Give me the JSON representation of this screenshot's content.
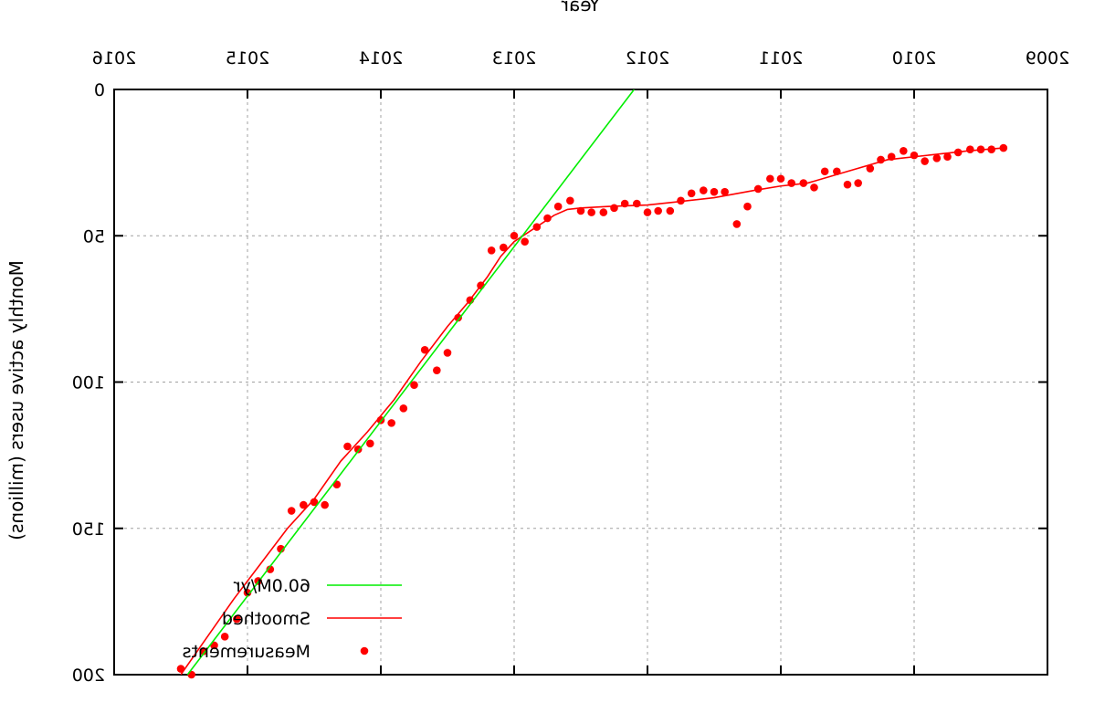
{
  "chart_data": {
    "type": "scatter",
    "xlabel": "Year",
    "ylabel": "Monthly active users (millions)",
    "xlim": [
      2009,
      2016
    ],
    "ylim": [
      0,
      200
    ],
    "x_ticks": [
      "2009",
      "2010",
      "2011",
      "2012",
      "2013",
      "2014",
      "2015",
      "2016"
    ],
    "y_ticks": [
      "0",
      "50",
      "100",
      "150",
      "200"
    ],
    "grid": true,
    "legend_position": "bottom-left",
    "series": [
      {
        "name": "Measurements",
        "kind": "points",
        "color": "#ff0000",
        "x": [
          2009.33,
          2009.42,
          2009.5,
          2009.58,
          2009.67,
          2009.75,
          2009.83,
          2009.92,
          2010.0,
          2010.08,
          2010.17,
          2010.25,
          2010.33,
          2010.42,
          2010.5,
          2010.58,
          2010.67,
          2010.75,
          2010.83,
          2010.92,
          2011.0,
          2011.08,
          2011.17,
          2011.25,
          2011.33,
          2011.42,
          2011.5,
          2011.58,
          2011.67,
          2011.75,
          2011.83,
          2011.92,
          2012.0,
          2012.08,
          2012.17,
          2012.25,
          2012.33,
          2012.42,
          2012.5,
          2012.58,
          2012.67,
          2012.75,
          2012.83,
          2012.92,
          2013.0,
          2013.08,
          2013.17,
          2013.25,
          2013.33,
          2013.42,
          2013.5,
          2013.58,
          2013.67,
          2013.75,
          2013.83,
          2013.92,
          2014.0,
          2014.08,
          2014.17,
          2014.25,
          2014.33,
          2014.42,
          2014.5,
          2014.58,
          2014.67,
          2014.75,
          2014.83,
          2014.92,
          2015.0,
          2015.08,
          2015.17,
          2015.25,
          2015.33,
          2015.42,
          2015.5
        ],
        "y": [
          20,
          20.5,
          20.5,
          20.5,
          21.5,
          23,
          23.5,
          24.5,
          22.5,
          21,
          23,
          24,
          27,
          32,
          32.5,
          28,
          28,
          33.5,
          32,
          32,
          30.5,
          30.5,
          34,
          40,
          46,
          35,
          35,
          34.5,
          35.5,
          38,
          41.5,
          41.5,
          42,
          39,
          39,
          40.5,
          42,
          42,
          41.5,
          38,
          40,
          44,
          47,
          52,
          50,
          54,
          55,
          67,
          72,
          78,
          90,
          96,
          89,
          101,
          109,
          114,
          113,
          121,
          123,
          122,
          135,
          142,
          141,
          142,
          144,
          157,
          164,
          168,
          172,
          181,
          187,
          190,
          192,
          200,
          198
        ]
      },
      {
        "name": "Smoothed",
        "kind": "line",
        "color": "#ff0000",
        "x": [
          2009.33,
          2009.6,
          2009.9,
          2010.2,
          2010.5,
          2010.8,
          2011.0,
          2011.2,
          2011.5,
          2011.8,
          2012.0,
          2012.3,
          2012.5,
          2012.6,
          2012.7,
          2012.8,
          2012.9,
          2013.0,
          2013.1,
          2013.2,
          2013.35,
          2013.5,
          2013.7,
          2013.9,
          2014.1,
          2014.3,
          2014.5,
          2014.7,
          2014.9,
          2015.1,
          2015.3,
          2015.5
        ],
        "y": [
          20,
          21,
          22.5,
          24,
          28,
          32,
          33,
          34.5,
          37,
          38.5,
          39.5,
          40,
          40.5,
          41,
          43,
          46,
          49,
          52,
          57,
          64,
          73,
          81,
          93,
          106,
          117,
          127,
          140,
          150,
          162,
          174,
          187,
          200
        ]
      },
      {
        "name": "60.0M/yr",
        "kind": "line",
        "color": "#00ee00",
        "x": [
          2012.1,
          2015.5
        ],
        "y": [
          0,
          203
        ]
      }
    ]
  }
}
